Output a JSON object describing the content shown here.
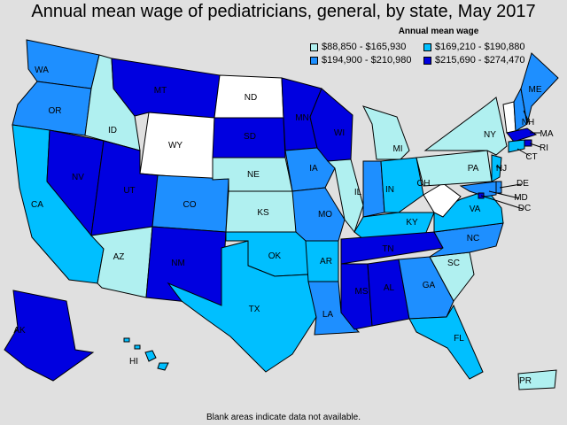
{
  "title": "Annual mean wage of pediatricians, general, by state, May 2017",
  "legend": {
    "title": "Annual mean wage",
    "bins": [
      {
        "label": "$88,850 - $165,930",
        "color": "#b0f0f0"
      },
      {
        "label": "$169,210 - $190,880",
        "color": "#00bfff"
      },
      {
        "label": "$194,900 - $210,980",
        "color": "#1e8fff"
      },
      {
        "label": "$215,690 - $274,470",
        "color": "#0000e0"
      }
    ]
  },
  "footnote": "Blank areas indicate data not available.",
  "colors": {
    "background": "#e0e0e0",
    "no_data": "#ffffff",
    "border": "#000000"
  },
  "states": [
    {
      "abbr": "WA",
      "bin": 2
    },
    {
      "abbr": "OR",
      "bin": 2
    },
    {
      "abbr": "CA",
      "bin": 1
    },
    {
      "abbr": "NV",
      "bin": 3
    },
    {
      "abbr": "ID",
      "bin": 0
    },
    {
      "abbr": "MT",
      "bin": 3
    },
    {
      "abbr": "WY",
      "bin": -1
    },
    {
      "abbr": "UT",
      "bin": 3
    },
    {
      "abbr": "AZ",
      "bin": 0
    },
    {
      "abbr": "CO",
      "bin": 2
    },
    {
      "abbr": "NM",
      "bin": 3
    },
    {
      "abbr": "ND",
      "bin": -1
    },
    {
      "abbr": "SD",
      "bin": 3
    },
    {
      "abbr": "NE",
      "bin": 0
    },
    {
      "abbr": "KS",
      "bin": 0
    },
    {
      "abbr": "OK",
      "bin": 1
    },
    {
      "abbr": "TX",
      "bin": 1
    },
    {
      "abbr": "MN",
      "bin": 3
    },
    {
      "abbr": "IA",
      "bin": 2
    },
    {
      "abbr": "MO",
      "bin": 2
    },
    {
      "abbr": "AR",
      "bin": 1
    },
    {
      "abbr": "LA",
      "bin": 2
    },
    {
      "abbr": "WI",
      "bin": 3
    },
    {
      "abbr": "IL",
      "bin": 0
    },
    {
      "abbr": "MI",
      "bin": 0
    },
    {
      "abbr": "IN",
      "bin": 2
    },
    {
      "abbr": "OH",
      "bin": 1
    },
    {
      "abbr": "KY",
      "bin": 1
    },
    {
      "abbr": "TN",
      "bin": 3
    },
    {
      "abbr": "MS",
      "bin": 3
    },
    {
      "abbr": "AL",
      "bin": 3
    },
    {
      "abbr": "GA",
      "bin": 2
    },
    {
      "abbr": "FL",
      "bin": 1
    },
    {
      "abbr": "SC",
      "bin": 0
    },
    {
      "abbr": "NC",
      "bin": 2
    },
    {
      "abbr": "VA",
      "bin": 1
    },
    {
      "abbr": "WV",
      "bin": -1
    },
    {
      "abbr": "PA",
      "bin": 0
    },
    {
      "abbr": "NY",
      "bin": 0
    },
    {
      "abbr": "VT",
      "bin": -1
    },
    {
      "abbr": "NH",
      "bin": 2
    },
    {
      "abbr": "ME",
      "bin": 2
    },
    {
      "abbr": "MA",
      "bin": 3
    },
    {
      "abbr": "RI",
      "bin": 3
    },
    {
      "abbr": "CT",
      "bin": 1
    },
    {
      "abbr": "NJ",
      "bin": 1
    },
    {
      "abbr": "DE",
      "bin": 2
    },
    {
      "abbr": "MD",
      "bin": 2
    },
    {
      "abbr": "DC",
      "bin": 3
    },
    {
      "abbr": "AK",
      "bin": 3
    },
    {
      "abbr": "HI",
      "bin": 1
    },
    {
      "abbr": "PR",
      "bin": 0
    }
  ]
}
